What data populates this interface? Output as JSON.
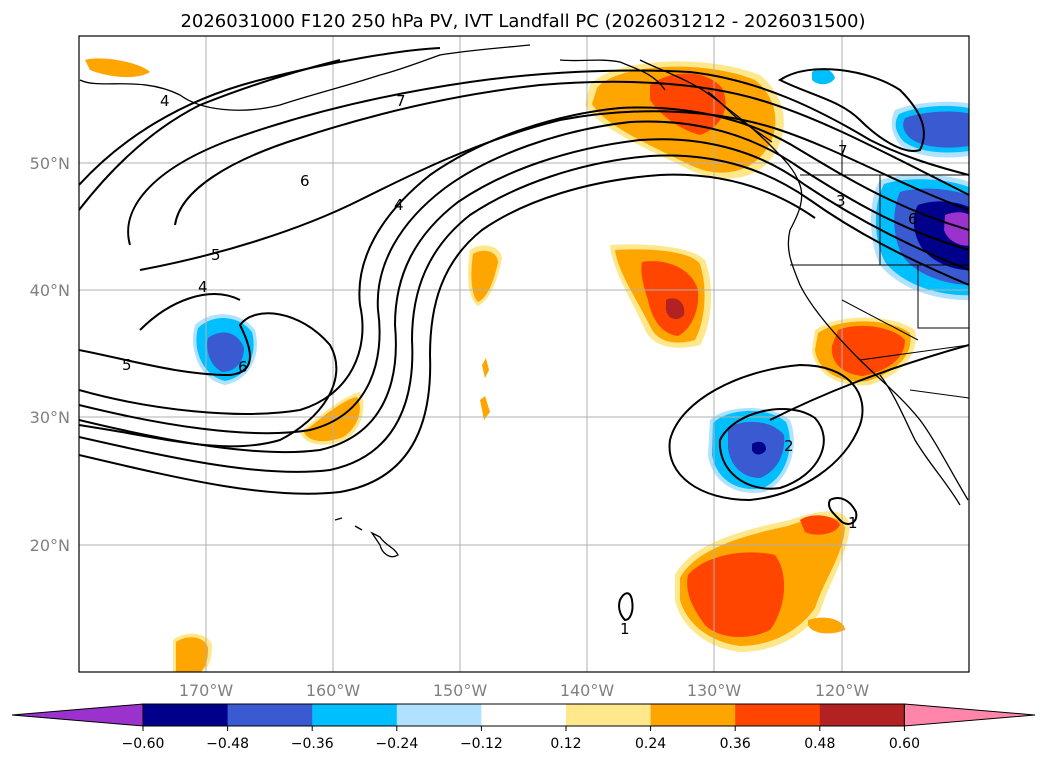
{
  "title": "2026031000 F120 250 hPa PV, IVT Landfall PC (2026031212 - 2026031500)",
  "latitude_labels": [
    "50°N",
    "40°N",
    "30°N",
    "20°N"
  ],
  "longitude_labels": [
    "170°W",
    "160°W",
    "150°W",
    "140°W",
    "130°W",
    "120°W"
  ],
  "contour_labels": [
    "7",
    "4",
    "6",
    "5",
    "4",
    "4",
    "5",
    "6",
    "2",
    "1",
    "1",
    "3",
    "7",
    "6"
  ],
  "colorbar": {
    "ticks": [
      "−0.60",
      "−0.48",
      "−0.36",
      "−0.24",
      "−0.12",
      "0.12",
      "0.24",
      "0.36",
      "0.48",
      "0.60"
    ],
    "colors": [
      "#9b32cd",
      "#00008b",
      "#3a5ad2",
      "#00bfff",
      "#b0e2ff",
      "#ffffff",
      "#ffe88c",
      "#ffa500",
      "#ff4500",
      "#b22222",
      "#ff86aa"
    ]
  },
  "chart_data": {
    "type": "map",
    "variable": "IVT Landfall PC shading with 250 hPa PV contours",
    "extent_lon": [
      -180,
      -110
    ],
    "extent_lat": [
      10,
      60
    ],
    "shading_levels": [
      -0.6,
      -0.48,
      -0.36,
      -0.24,
      -0.12,
      0.12,
      0.24,
      0.36,
      0.48,
      0.6
    ],
    "pv_contour_values": [
      1,
      2,
      3,
      4,
      5,
      6,
      7
    ]
  }
}
